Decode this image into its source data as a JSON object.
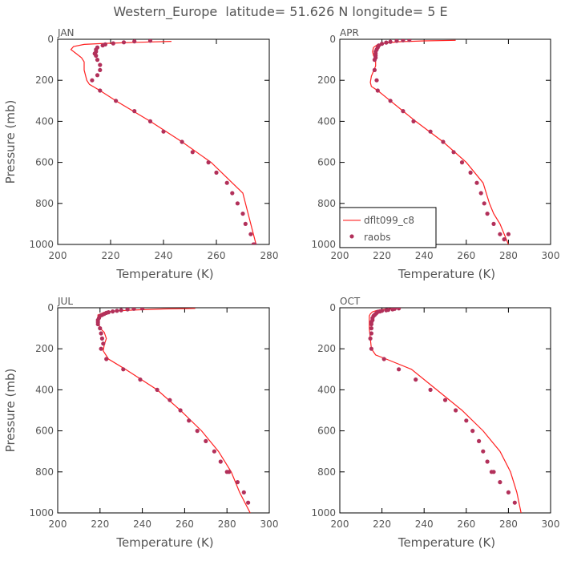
{
  "figure": {
    "title": "Western_Europe  latitude= 51.626 N longitude= 5 E",
    "xlabel": "Temperature (K)",
    "ylabel": "Pressure (mb)"
  },
  "colors": {
    "model_line": "#ff2020",
    "raobs_dot": "#b2305a",
    "axis": "#000000",
    "text": "#555555"
  },
  "legend": {
    "model": "dflt099_c8",
    "obs": "raobs"
  },
  "chart_data": [
    {
      "type": "line",
      "panel": "JAN",
      "xlabel": "Temperature (K)",
      "ylabel": "Pressure (mb)",
      "xlim": [
        200,
        280
      ],
      "ylim": [
        1000,
        0
      ],
      "xticks": [
        200,
        220,
        240,
        260,
        280
      ],
      "yticks": [
        0,
        200,
        400,
        600,
        800,
        1000
      ],
      "legend_position": "none",
      "series": [
        {
          "role": "model",
          "temperature": [
            243,
            230,
            218,
            210,
            206,
            205,
            207,
            209,
            210,
            210,
            211,
            212,
            216,
            222,
            235,
            247,
            258,
            266,
            270,
            272,
            274,
            275
          ],
          "pressure": [
            10,
            15,
            20,
            25,
            35,
            50,
            70,
            90,
            110,
            150,
            200,
            220,
            250,
            300,
            400,
            500,
            600,
            700,
            750,
            850,
            950,
            1000
          ]
        },
        {
          "role": "observations",
          "temperature": [
            235,
            229,
            225,
            221,
            218,
            217,
            215,
            214.5,
            214.5,
            214,
            214.5,
            215,
            216,
            216,
            215,
            213,
            216,
            222,
            229,
            235,
            240,
            247,
            251,
            257,
            260,
            264,
            266,
            268,
            270,
            271,
            273,
            274,
            274.5
          ],
          "pressure": [
            7,
            10,
            15,
            20,
            25,
            30,
            40,
            50,
            60,
            70,
            80,
            100,
            125,
            150,
            175,
            200,
            250,
            300,
            350,
            400,
            450,
            500,
            550,
            600,
            650,
            700,
            750,
            800,
            850,
            900,
            950,
            1000,
            1000
          ]
        }
      ]
    },
    {
      "type": "line",
      "panel": "APR",
      "xlabel": "Temperature (K)",
      "ylabel": "",
      "xlim": [
        200,
        300
      ],
      "ylim": [
        1000,
        0
      ],
      "xticks": [
        200,
        220,
        240,
        260,
        280,
        300
      ],
      "yticks": [
        0,
        200,
        400,
        600,
        800,
        1000
      ],
      "legend_position": "bottom-left",
      "series": [
        {
          "role": "model",
          "temperature": [
            255,
            240,
            228,
            222,
            218,
            216,
            215.5,
            216,
            217,
            217,
            215,
            214.5,
            215,
            218,
            224,
            236,
            249,
            260,
            268,
            271,
            273,
            276,
            280
          ],
          "pressure": [
            5,
            8,
            12,
            18,
            25,
            40,
            60,
            80,
            100,
            130,
            180,
            210,
            230,
            250,
            300,
            400,
            500,
            600,
            700,
            800,
            850,
            900,
            1000
          ]
        },
        {
          "role": "observations",
          "temperature": [
            233,
            230,
            227,
            224,
            222,
            220,
            218.5,
            218,
            217.5,
            217,
            217,
            217,
            217,
            216.5,
            216.5,
            217.5,
            218,
            224,
            230,
            235,
            243,
            249,
            254,
            258,
            262,
            265,
            267,
            268.5,
            270,
            273,
            276,
            278,
            280
          ],
          "pressure": [
            3,
            5,
            8,
            12,
            16,
            22,
            30,
            40,
            50,
            60,
            70,
            80,
            90,
            100,
            150,
            200,
            250,
            300,
            350,
            400,
            450,
            500,
            550,
            600,
            650,
            700,
            750,
            800,
            850,
            900,
            950,
            975,
            950
          ]
        }
      ]
    },
    {
      "type": "line",
      "panel": "JUL",
      "xlabel": "Temperature (K)",
      "ylabel": "Pressure (mb)",
      "xlim": [
        200,
        300
      ],
      "ylim": [
        1000,
        0
      ],
      "xticks": [
        200,
        220,
        240,
        260,
        280,
        300
      ],
      "yticks": [
        0,
        200,
        400,
        600,
        800,
        1000
      ],
      "legend_position": "none",
      "series": [
        {
          "role": "model",
          "temperature": [
            265,
            250,
            238,
            228,
            222,
            219,
            219,
            219.5,
            220,
            222,
            223,
            222,
            221.5,
            224,
            232,
            247,
            258,
            268,
            276,
            282,
            286,
            291
          ],
          "pressure": [
            3,
            6,
            10,
            15,
            22,
            35,
            60,
            80,
            100,
            120,
            150,
            180,
            210,
            250,
            300,
            400,
            500,
            600,
            700,
            800,
            900,
            1000
          ]
        },
        {
          "role": "observations",
          "temperature": [
            240,
            236,
            233,
            230,
            228,
            226,
            224,
            223,
            222,
            221,
            220,
            219.5,
            219,
            219,
            219,
            220,
            220.5,
            221,
            221.5,
            220.5,
            223,
            231,
            239,
            247,
            253,
            258,
            262,
            266,
            270,
            274,
            277,
            280,
            281,
            285,
            288,
            290
          ],
          "pressure": [
            3,
            5,
            8,
            12,
            15,
            18,
            22,
            25,
            30,
            35,
            40,
            50,
            60,
            70,
            80,
            100,
            125,
            150,
            175,
            200,
            250,
            300,
            350,
            400,
            450,
            500,
            550,
            600,
            650,
            700,
            750,
            800,
            800,
            850,
            900,
            950
          ]
        }
      ]
    },
    {
      "type": "line",
      "panel": "OCT",
      "xlabel": "Temperature (K)",
      "ylabel": "",
      "xlim": [
        200,
        300
      ],
      "ylim": [
        1000,
        0
      ],
      "xticks": [
        200,
        220,
        240,
        260,
        280,
        300
      ],
      "yticks": [
        0,
        200,
        400,
        600,
        800,
        1000
      ],
      "legend_position": "none",
      "series": [
        {
          "role": "model",
          "temperature": [
            227,
            222,
            219,
            217,
            215.5,
            214.5,
            214,
            214,
            214,
            214,
            214.5,
            215,
            217,
            222,
            234,
            246,
            258,
            268,
            276,
            281,
            284,
            286
          ],
          "pressure": [
            3,
            6,
            10,
            15,
            20,
            30,
            40,
            60,
            80,
            100,
            150,
            200,
            230,
            250,
            300,
            400,
            500,
            600,
            700,
            800,
            900,
            1000
          ]
        },
        {
          "role": "observations",
          "temperature": [
            228,
            226,
            225,
            223,
            222,
            220,
            219,
            218,
            217.5,
            217,
            216.5,
            216,
            215.5,
            215.5,
            215,
            215,
            215,
            215,
            214.5,
            215,
            221,
            228,
            236,
            243,
            250,
            255,
            260,
            263,
            266,
            268,
            270,
            272,
            273,
            276,
            280,
            283
          ],
          "pressure": [
            3,
            5,
            8,
            10,
            12,
            15,
            18,
            20,
            25,
            30,
            35,
            40,
            50,
            60,
            70,
            80,
            100,
            125,
            150,
            200,
            250,
            300,
            350,
            400,
            450,
            500,
            550,
            600,
            650,
            700,
            750,
            800,
            800,
            850,
            900,
            950
          ]
        }
      ]
    }
  ]
}
